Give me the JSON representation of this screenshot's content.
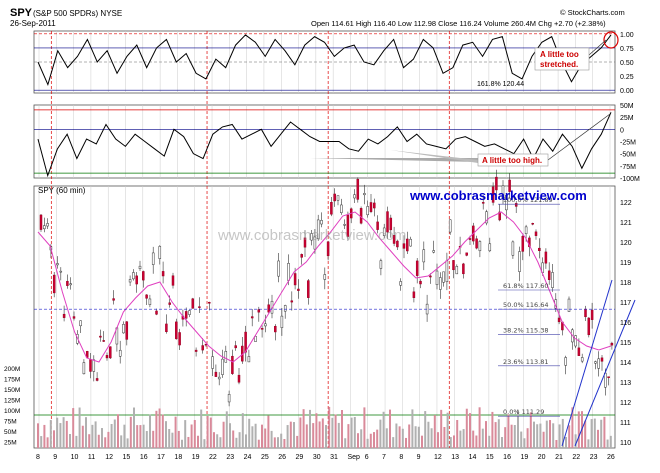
{
  "header": {
    "symbol": "SPY",
    "name": "(S&P 500 SPDRs) NYSE",
    "date": "26-Sep-2011",
    "copyright": "© StockCharts.com",
    "ohlc": "Open 114.61  High 116.40  Low 112.98  Close 116.24  Volume 260.4M  Chg +2.70 (+2.38%)"
  },
  "watermark": "www.cobrasmarketview.com",
  "watermark_url_big": "www.cobrasmarketview.com",
  "annotations": {
    "stretched": "A little too\nstretched.",
    "stretched_l1": "A little too",
    "stretched_l2": "stretched.",
    "high": "A little too high."
  },
  "chart_data": [
    {
      "type": "line",
      "panel": "oscillator-1",
      "y_ticks": [
        "1.00",
        "0.75",
        "0.50",
        "0.25",
        "0.00"
      ],
      "ylim": [
        -0.05,
        1.05
      ],
      "annotation_label": "161.8% 120.44",
      "series": [
        {
          "values": [
            0.5,
            0.1,
            0.7,
            0.4,
            0.6,
            0.9,
            0.5,
            0.7,
            0.3,
            0.6,
            0.8,
            0.4,
            0.75,
            0.9,
            0.5,
            0.65,
            0.3,
            0.2,
            0.55,
            0.4,
            0.8,
            0.98,
            0.85,
            0.6,
            0.9,
            0.7,
            0.45,
            0.8,
            0.95,
            0.85,
            0.6,
            0.75,
            0.8,
            0.5,
            0.45,
            0.7,
            0.9,
            0.4,
            0.55,
            0.9,
            0.75,
            0.3,
            0.4,
            0.8,
            0.85,
            0.6,
            0.9,
            0.95,
            0.3,
            0.2,
            0.6,
            0.85,
            0.95,
            0.5,
            0.15,
            0.45,
            0.6,
            0.75,
            0.98
          ]
        }
      ]
    },
    {
      "type": "line",
      "panel": "oscillator-2",
      "y_ticks": [
        "50M",
        "25M",
        "0",
        "-25M",
        "-50M",
        "-75M",
        "-100M"
      ],
      "ylim": [
        -100,
        50
      ],
      "series": [
        {
          "values": [
            -20,
            -95,
            -40,
            -10,
            -60,
            -20,
            -30,
            10,
            -20,
            -35,
            -10,
            -25,
            -40,
            -55,
            0,
            -15,
            -50,
            -60,
            -10,
            5,
            10,
            -20,
            -10,
            0,
            -35,
            -10,
            15,
            0,
            -15,
            -25,
            -25,
            -25,
            -40,
            -45,
            -20,
            -30,
            -15,
            5,
            -25,
            -10,
            -30,
            -35,
            -40,
            -20,
            -15,
            -25,
            -35,
            -30,
            -40,
            -50,
            -20,
            -60,
            -20,
            -45,
            -10,
            -35,
            -80,
            -40,
            -10,
            35
          ]
        }
      ]
    },
    {
      "type": "candlestick",
      "panel": "price",
      "title": "SPY (60 min)",
      "x_tick_labels": [
        "8",
        "9",
        "10",
        "11",
        "12",
        "15",
        "16",
        "17",
        "18",
        "19",
        "22",
        "23",
        "24",
        "25",
        "26",
        "29",
        "30",
        "31",
        "Sep",
        "6",
        "7",
        "8",
        "9",
        "12",
        "13",
        "14",
        "15",
        "16",
        "19",
        "20",
        "21",
        "22",
        "23",
        "26"
      ],
      "y_ticks": [
        110,
        111,
        112,
        113,
        114,
        115,
        116,
        117,
        118,
        119,
        120,
        121,
        122
      ],
      "ylim": [
        109.7,
        122.8
      ],
      "fib_levels": [
        {
          "label": "100.0% 121.89",
          "value": 121.89
        },
        {
          "label": "61.8% 117.60",
          "value": 117.6
        },
        {
          "label": "50.0% 116.64",
          "value": 116.64
        },
        {
          "label": "38.2% 115.38",
          "value": 115.38
        },
        {
          "label": "23.6% 113.81",
          "value": 113.81
        },
        {
          "label": "0.0% 111.29",
          "value": 111.29
        }
      ],
      "volume_ticks": [
        "200M",
        "175M",
        "150M",
        "125M",
        "100M",
        "75M",
        "50M",
        "25M"
      ],
      "ma_values": [
        120.5,
        119.8,
        117.5,
        115.5,
        114.2,
        114.0,
        115.0,
        116.5,
        117.2,
        117.8,
        118.0,
        117.0,
        116.2,
        115.5,
        114.8,
        114.3,
        114.0,
        114.5,
        115.5,
        116.5,
        117.5,
        118.5,
        119.0,
        119.8,
        120.5,
        121.3,
        121.5,
        121.0,
        120.2,
        119.5,
        118.8,
        118.2,
        118.3,
        118.8,
        119.3,
        120.0,
        120.6,
        121.2,
        121.5,
        121.0,
        120.2,
        119.0,
        117.5,
        116.0,
        115.2,
        114.8,
        114.6,
        114.8
      ]
    }
  ]
}
